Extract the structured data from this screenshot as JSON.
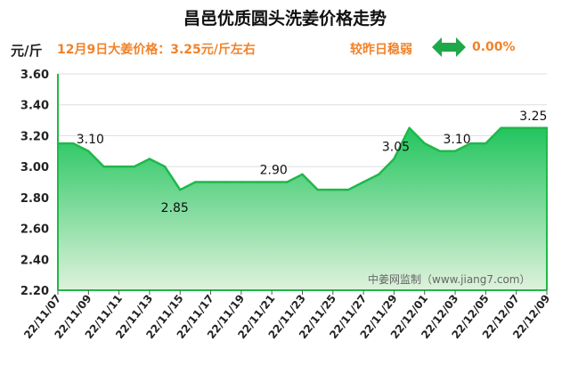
{
  "chart_data": {
    "type": "area",
    "title": "昌邑优质圆头洗姜价格走势",
    "ylabel": "元/斤",
    "xlabel": "",
    "ylim": [
      2.2,
      3.6
    ],
    "yticks": [
      "2.20",
      "2.40",
      "2.60",
      "2.80",
      "3.00",
      "3.20",
      "3.40",
      "3.60"
    ],
    "grid": true,
    "x": [
      "22/11/07",
      "22/11/08",
      "22/11/09",
      "22/11/10",
      "22/11/11",
      "22/11/12",
      "22/11/13",
      "22/11/14",
      "22/11/15",
      "22/11/16",
      "22/11/17",
      "22/11/18",
      "22/11/19",
      "22/11/20",
      "22/11/21",
      "22/11/22",
      "22/11/23",
      "22/11/24",
      "22/11/25",
      "22/11/26",
      "22/11/27",
      "22/11/28",
      "22/11/29",
      "22/11/30",
      "22/12/01",
      "22/12/02",
      "22/12/03",
      "22/12/04",
      "22/12/05",
      "22/12/06",
      "22/12/07",
      "22/12/08",
      "22/12/09"
    ],
    "xtick_labels": [
      "22/11/07",
      "22/11/09",
      "22/11/11",
      "22/11/13",
      "22/11/15",
      "22/11/17",
      "22/11/19",
      "22/11/21",
      "22/11/23",
      "22/11/25",
      "22/11/27",
      "22/11/29",
      "22/12/01",
      "22/12/03",
      "22/12/05",
      "22/12/07",
      "22/12/09"
    ],
    "values": [
      3.15,
      3.15,
      3.1,
      3.0,
      3.0,
      3.0,
      3.05,
      3.0,
      2.85,
      2.9,
      2.9,
      2.9,
      2.9,
      2.9,
      2.9,
      2.9,
      2.95,
      2.85,
      2.85,
      2.85,
      2.9,
      2.95,
      3.05,
      3.25,
      3.15,
      3.1,
      3.1,
      3.15,
      3.15,
      3.25,
      3.25,
      3.25,
      3.25
    ],
    "data_labels": [
      {
        "index": 2,
        "text": "3.10"
      },
      {
        "index": 8,
        "text": "2.85"
      },
      {
        "index": 14,
        "text": "2.90"
      },
      {
        "index": 22,
        "text": "3.05"
      },
      {
        "index": 26,
        "text": "3.10"
      },
      {
        "index": 31,
        "text": "3.25"
      }
    ],
    "colors": {
      "line": "#1fb84a",
      "fill_top": "#22c55e",
      "fill_bottom": "#dff2dc"
    }
  },
  "header": {
    "unit": "元/斤",
    "price_note": "12月9日大姜价格：3.25元/斤左右",
    "change_label": "较昨日稳弱",
    "change_value": "0.00%",
    "change_icon": "double-arrow-icon",
    "change_icon_color": "#1fa84a"
  },
  "watermark": "中姜网监制（www.jiang7.com）"
}
